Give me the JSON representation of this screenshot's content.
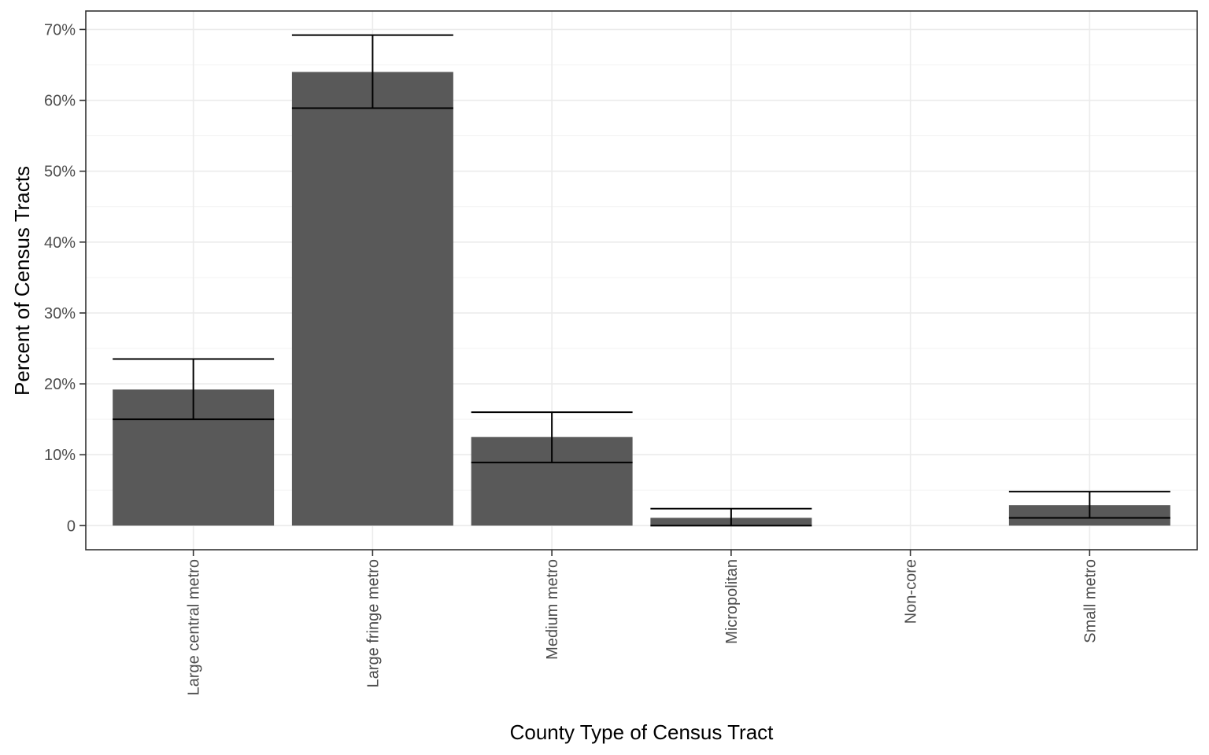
{
  "chart_data": {
    "type": "bar",
    "xlabel": "County Type of Census Tract",
    "ylabel": "Percent of Census Tracts",
    "categories": [
      "Large central metro",
      "Large fringe metro",
      "Medium metro",
      "Micropolitan",
      "Non-core",
      "Small metro"
    ],
    "values": [
      19.2,
      64.0,
      12.5,
      1.1,
      0,
      2.9
    ],
    "error_low": [
      15.0,
      58.9,
      8.9,
      0.0,
      null,
      1.1
    ],
    "error_high": [
      23.5,
      69.2,
      16.0,
      2.4,
      null,
      4.8
    ],
    "ylim": [
      -3.4,
      72.6
    ],
    "y_ticks": [
      0,
      10,
      20,
      30,
      40,
      50,
      60,
      70
    ],
    "y_tick_labels": [
      "0",
      "10%",
      "20%",
      "30%",
      "40%",
      "50%",
      "60%",
      "70%"
    ],
    "grid": true,
    "bar_color": "#595959"
  }
}
